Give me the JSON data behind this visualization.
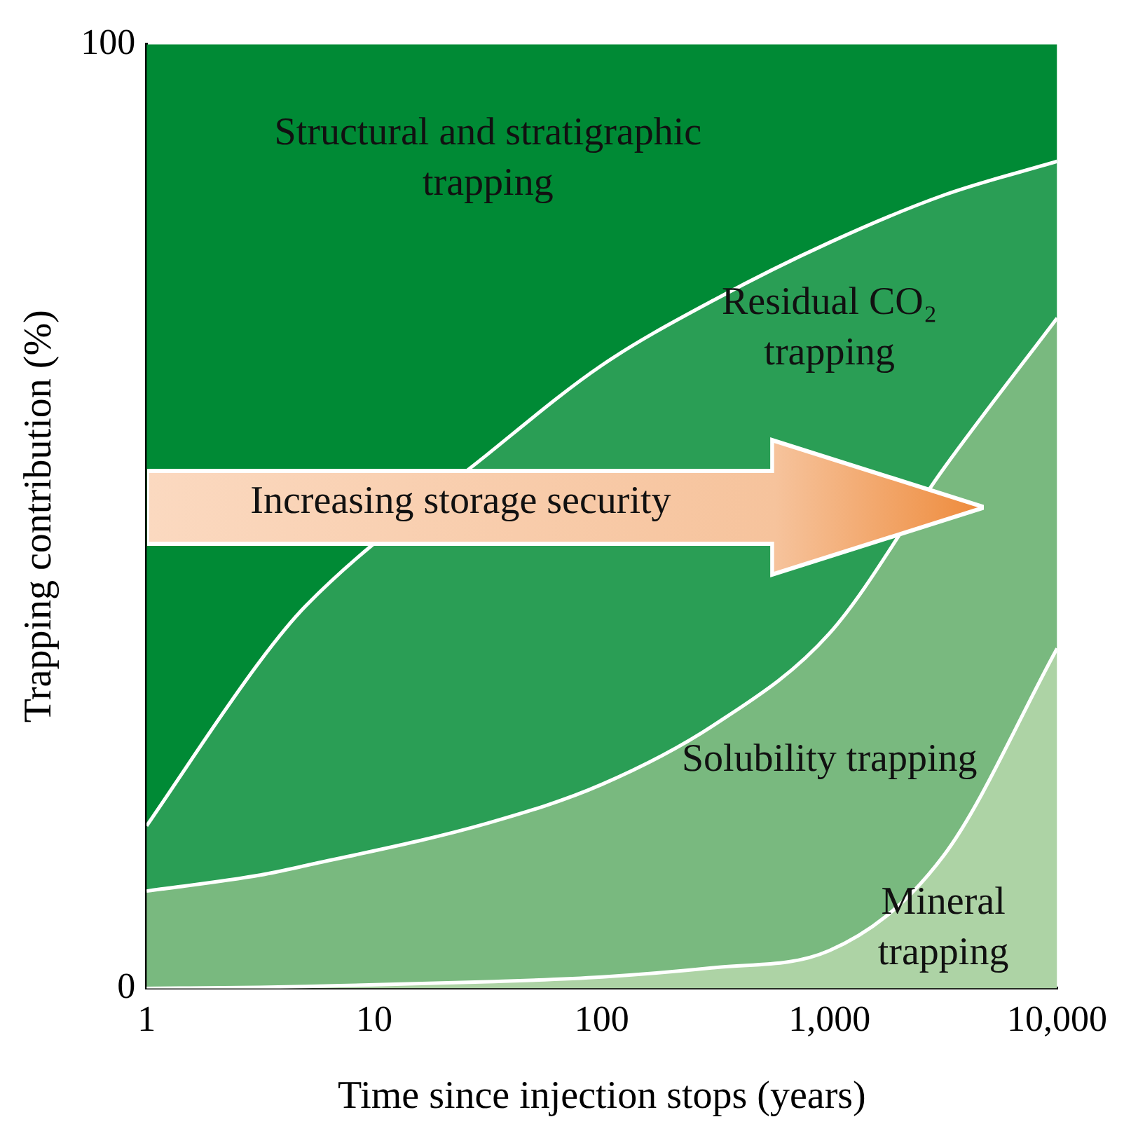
{
  "chart_data": {
    "type": "area",
    "stacked": true,
    "xlabel": "Time since injection stops (years)",
    "ylabel": "Trapping contribution (%)",
    "x": [
      1,
      3.16,
      5,
      31.6,
      100,
      316,
      1000,
      3162,
      10000
    ],
    "series": [
      {
        "name": "Mineral trapping",
        "color": "#add3a5",
        "values": [
          0,
          0.1,
          0.2,
          0.7,
          1.2,
          2.2,
          4,
          14,
          36
        ]
      },
      {
        "name": "Solubility trapping",
        "color": "#79b97f",
        "values": [
          10.3,
          11.9,
          12.8,
          16.8,
          20.4,
          25.8,
          33.6,
          41,
          35
        ]
      },
      {
        "name": "Residual CO₂ trapping",
        "color": "#2a9e55",
        "values": [
          6.9,
          22.7,
          27.5,
          39.1,
          44.4,
          45,
          41.4,
          29,
          16.6
        ]
      },
      {
        "name": "Structural and stratigraphic trapping",
        "color": "#008a35",
        "values": [
          82.8,
          65.3,
          59.5,
          43.4,
          34,
          27,
          21,
          16,
          12.4
        ]
      }
    ],
    "log": "x",
    "xlim": [
      1,
      10000
    ],
    "xticks": [
      1,
      10,
      100,
      {
        "value": 1000,
        "label": "1,000"
      },
      {
        "value": 10000,
        "label": "10,000"
      }
    ],
    "ylim": [
      0,
      100
    ],
    "yticks": [
      0,
      100
    ],
    "grid": false,
    "legend": false,
    "marker": "none",
    "annotations": [
      "Increasing storage security"
    ]
  }
}
